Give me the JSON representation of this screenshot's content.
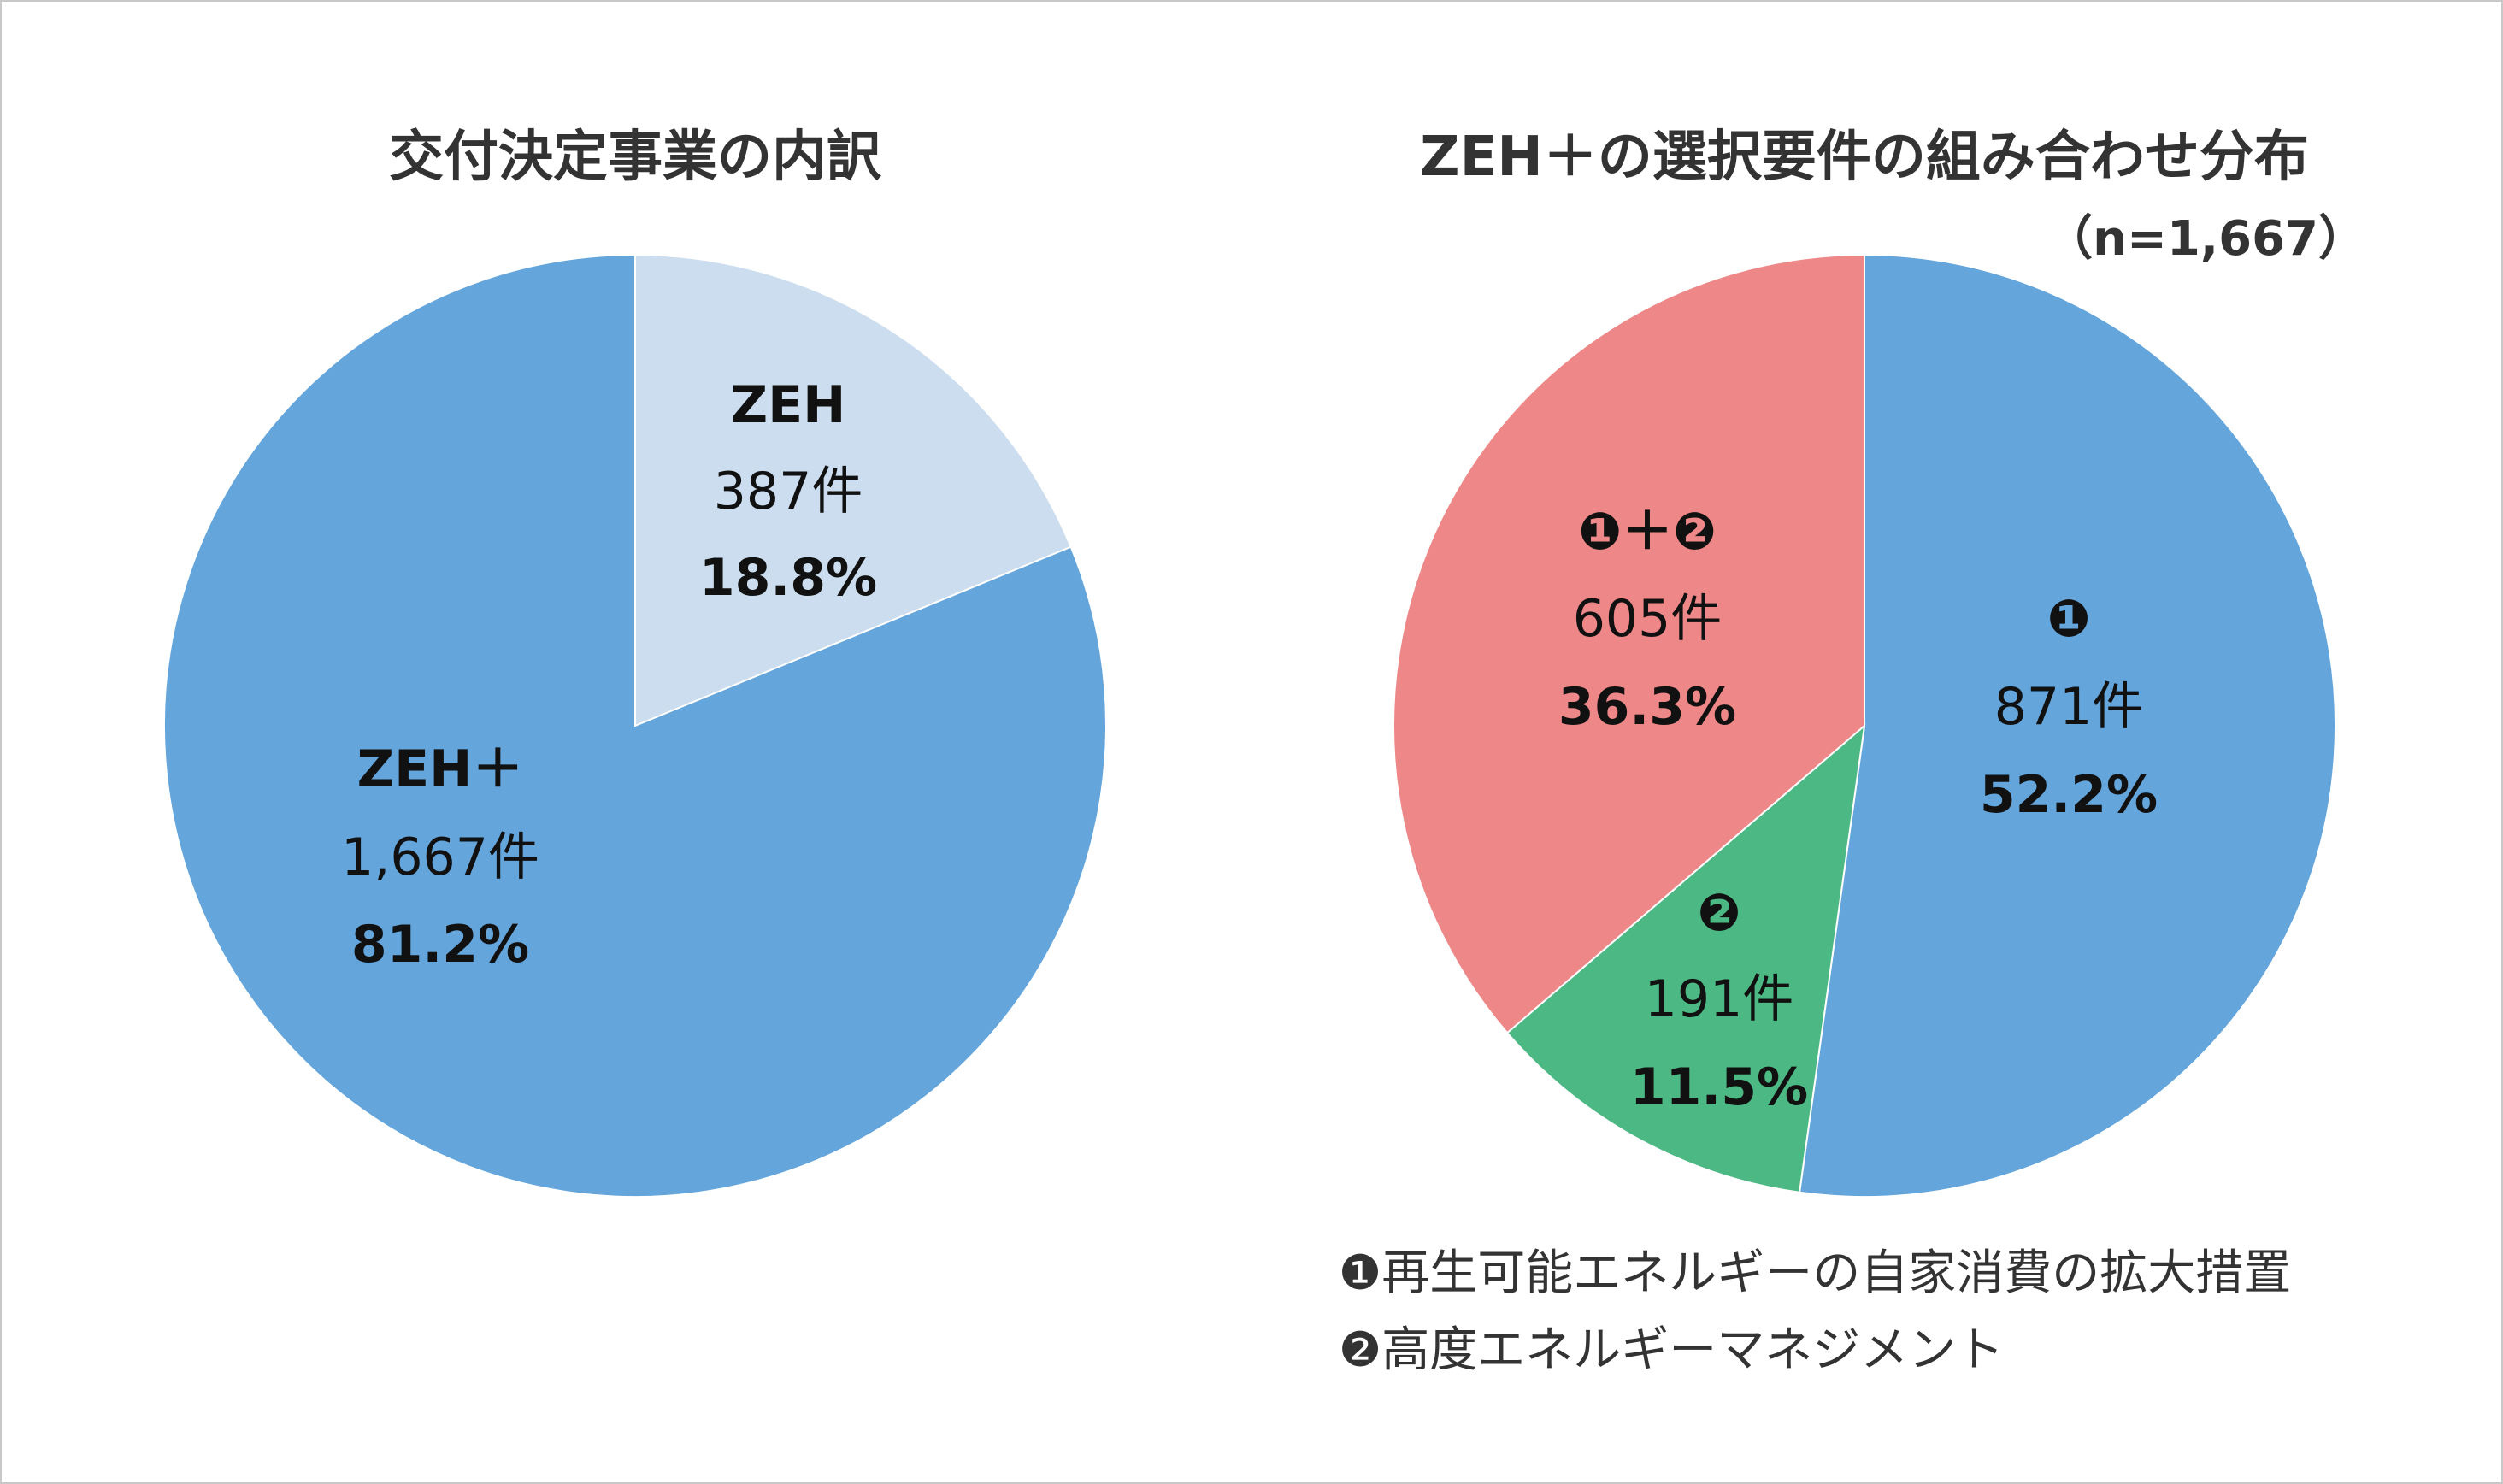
{
  "chart_data": [
    {
      "type": "pie",
      "title": "交付決定事業の内訳",
      "start": "top",
      "direction": "clockwise",
      "slices": [
        {
          "name": "ZEH",
          "count_label": "387件",
          "percent_label": "18.8%",
          "value": 18.8,
          "color": "#cbddee"
        },
        {
          "name": "ZEH＋",
          "count_label": "1,667件",
          "percent_label": "81.2%",
          "value": 81.2,
          "color": "#64a5dc"
        }
      ]
    },
    {
      "type": "pie",
      "title": "ZEH＋の選択要件の組み合わせ分布",
      "subtitle": "（n=1,667）",
      "start": "top",
      "direction": "clockwise",
      "slices": [
        {
          "name": "❶",
          "count_label": "871件",
          "percent_label": "52.2%",
          "value": 52.2,
          "color": "#64a5dc"
        },
        {
          "name": "❷",
          "count_label": "191件",
          "percent_label": "11.5%",
          "value": 11.5,
          "color": "#4cb884"
        },
        {
          "name": "❶＋❷",
          "count_label": "605件",
          "percent_label": "36.3%",
          "value": 36.3,
          "color": "#ee8787"
        }
      ],
      "legend": [
        "❶再生可能エネルギーの自家消費の拡大措置",
        "❷高度エネルギーマネジメント"
      ]
    }
  ]
}
